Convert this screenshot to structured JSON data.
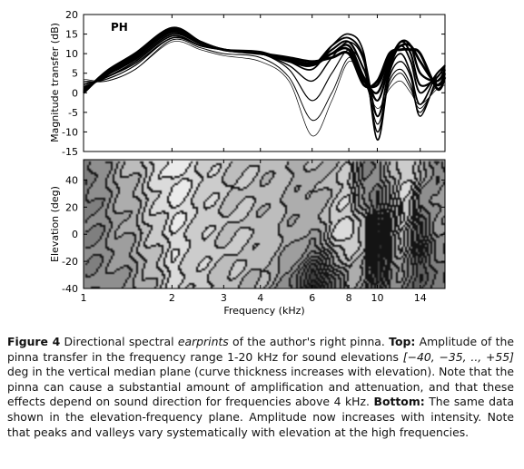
{
  "figure": {
    "panel_label": "PH",
    "ylabel_top": "Magnitude transfer (dB)",
    "ylabel_bottom": "Elevation (deg)",
    "xlabel": "Frequency (kHz)",
    "top_yticks": [
      "20",
      "15",
      "10",
      "5",
      "0",
      "-5",
      "-10",
      "-15"
    ],
    "bottom_yticks": [
      "40",
      "20",
      "0",
      "-20",
      "-40"
    ],
    "xticks": [
      "1",
      "2",
      "3",
      "4",
      "6",
      "8",
      "10",
      "14"
    ]
  },
  "caption": {
    "label": "Figure 4",
    "s1": "Directional spectral",
    "s1_em": "earprints",
    "s2": "of the author's right pinna.",
    "top_label": "Top:",
    "s3": "Amplitude of the pinna transfer in the frequency range 1-20 kHz for sound elevations",
    "math": "[−40, −35, .., +55]",
    "s4": "deg in the vertical median plane (curve thickness increases with elevation). Note that the pinna can cause a substantial amount of amplification and attenuation, and that these effects depend on sound direction for frequencies above 4 kHz.",
    "bottom_label": "Bottom:",
    "s5": "The same data shown in the elevation-frequency plane. Amplitude now increases with intensity. Note that peaks and valleys vary systematically with elevation at the high frequencies."
  },
  "chart_data": [
    {
      "type": "line",
      "title": "PH",
      "xlabel": "Frequency (kHz)",
      "ylabel": "Magnitude transfer (dB)",
      "x_scale": "log",
      "xlim": [
        1,
        17
      ],
      "ylim": [
        -15,
        20
      ],
      "x_ticks": [
        1,
        2,
        3,
        4,
        6,
        8,
        10,
        14
      ],
      "y_ticks": [
        20,
        15,
        10,
        5,
        0,
        -5,
        -10,
        -15
      ],
      "grid": false,
      "x": [
        1,
        1.2,
        1.5,
        2,
        2.5,
        3,
        4,
        5,
        6,
        7,
        8,
        9,
        10,
        11,
        12,
        13,
        14,
        16,
        17
      ],
      "series": [
        {
          "elevation": -40,
          "values": [
            3.5,
            3,
            6,
            13,
            11,
            9.5,
            8,
            3,
            -11,
            -2,
            8,
            3,
            -4,
            1,
            3,
            0,
            -3,
            1,
            2
          ]
        },
        {
          "elevation": -30,
          "values": [
            3,
            3,
            6,
            13.5,
            11.5,
            10,
            9,
            4,
            -7,
            0,
            9,
            4,
            -6,
            2,
            5,
            1,
            -4,
            2,
            3
          ]
        },
        {
          "elevation": -20,
          "values": [
            2.5,
            3.5,
            7,
            14,
            12,
            11,
            10,
            6,
            -2,
            5,
            11,
            6,
            -8,
            3,
            6,
            2,
            -5,
            3,
            4
          ]
        },
        {
          "elevation": -10,
          "values": [
            2,
            4,
            7.5,
            14,
            12,
            11,
            10,
            7,
            3,
            9,
            13,
            8,
            -10,
            4,
            8,
            4,
            -6,
            4,
            5
          ]
        },
        {
          "elevation": 0,
          "values": [
            1.5,
            4,
            8,
            14.5,
            12,
            11,
            10.5,
            8,
            6,
            12,
            15,
            10,
            -12,
            5,
            10,
            5,
            -3,
            5,
            6
          ]
        },
        {
          "elevation": 10,
          "values": [
            1,
            4.5,
            8.5,
            15,
            12.5,
            11,
            10,
            8,
            7,
            12,
            14,
            9,
            -6,
            6,
            12,
            8,
            0,
            5,
            7
          ]
        },
        {
          "elevation": 20,
          "values": [
            1,
            4.5,
            9,
            15.5,
            12.5,
            11,
            10,
            8,
            7,
            11,
            13,
            6,
            -2,
            7,
            13,
            10,
            2,
            4,
            7
          ]
        },
        {
          "elevation": 30,
          "values": [
            0.5,
            5,
            9,
            16,
            13,
            11,
            10,
            8.5,
            7,
            10,
            12,
            4,
            0,
            8,
            13,
            12,
            5,
            3,
            6
          ]
        },
        {
          "elevation": 40,
          "values": [
            0.5,
            5,
            9.5,
            16,
            13,
            11,
            10,
            8.5,
            7.5,
            10,
            11,
            3,
            2,
            9,
            12,
            12,
            8,
            2,
            5
          ]
        },
        {
          "elevation": 55,
          "values": [
            0,
            5.5,
            10,
            16.5,
            13,
            11,
            10,
            9,
            8,
            9,
            10,
            2,
            3,
            10,
            11,
            11,
            10,
            1,
            4
          ]
        }
      ]
    },
    {
      "type": "heatmap",
      "xlabel": "Frequency (kHz)",
      "ylabel": "Elevation (deg)",
      "x_scale": "log",
      "xlim": [
        1,
        17
      ],
      "ylim": [
        -40,
        55
      ],
      "x_ticks": [
        1,
        2,
        3,
        4,
        6,
        8,
        10,
        14
      ],
      "y_ticks": [
        40,
        20,
        0,
        -20,
        -40
      ],
      "color_meaning": "intensity increases with amplitude (dB)",
      "source": "same data as top panel"
    }
  ]
}
